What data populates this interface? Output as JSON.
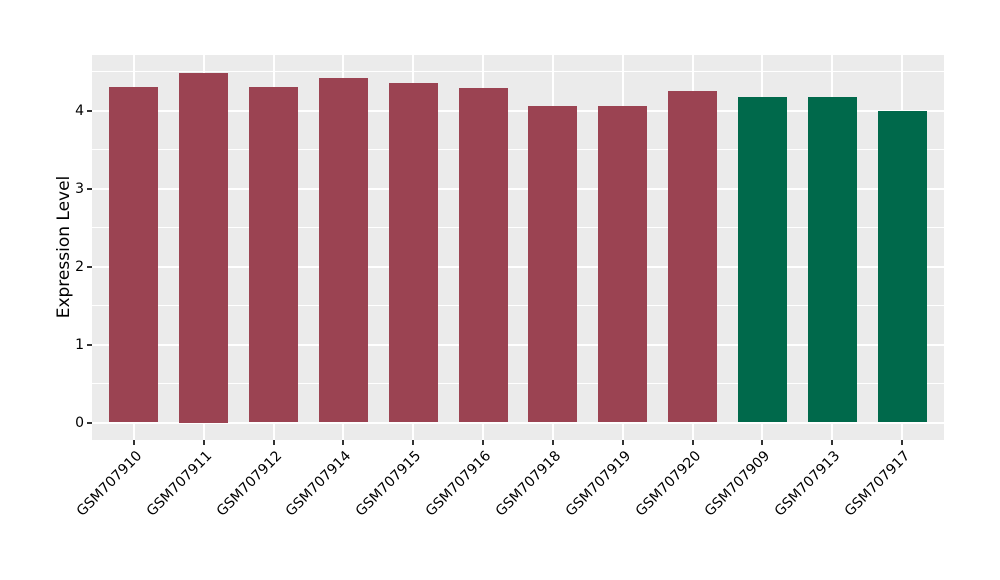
{
  "figure": {
    "background_color": "#ffffff",
    "panel_background_color": "#ebebeb",
    "grid_color": "#ffffff",
    "tick_mark_color": "#333333",
    "text_color": "#000000"
  },
  "chart_data": {
    "type": "bar",
    "title": "",
    "xlabel": "",
    "ylabel": "Expression Level",
    "categories": [
      "GSM707910",
      "GSM707911",
      "GSM707912",
      "GSM707914",
      "GSM707915",
      "GSM707916",
      "GSM707918",
      "GSM707919",
      "GSM707920",
      "GSM707909",
      "GSM707913",
      "GSM707917"
    ],
    "values": [
      4.31,
      4.49,
      4.31,
      4.42,
      4.36,
      4.29,
      4.06,
      4.06,
      4.25,
      4.18,
      4.17,
      4.0
    ],
    "bar_colors": [
      "#9b4352",
      "#9b4352",
      "#9b4352",
      "#9b4352",
      "#9b4352",
      "#9b4352",
      "#9b4352",
      "#9b4352",
      "#9b4352",
      "#00694b",
      "#00694b",
      "#00694b"
    ],
    "group_colors": {
      "maroon": "#9b4352",
      "green": "#00694b"
    },
    "y_ticks": [
      "0",
      "1",
      "2",
      "3",
      "4"
    ],
    "y_tick_values": [
      0,
      1,
      2,
      3,
      4
    ],
    "y_minor_tick_values": [
      0.5,
      1.5,
      2.5,
      3.5,
      4.5
    ],
    "ylim": [
      -0.2245,
      4.7145
    ],
    "grid": true,
    "legend": "none",
    "x_tick_angle": 45,
    "bar_width": 0.7,
    "x_expand": 0.6
  }
}
